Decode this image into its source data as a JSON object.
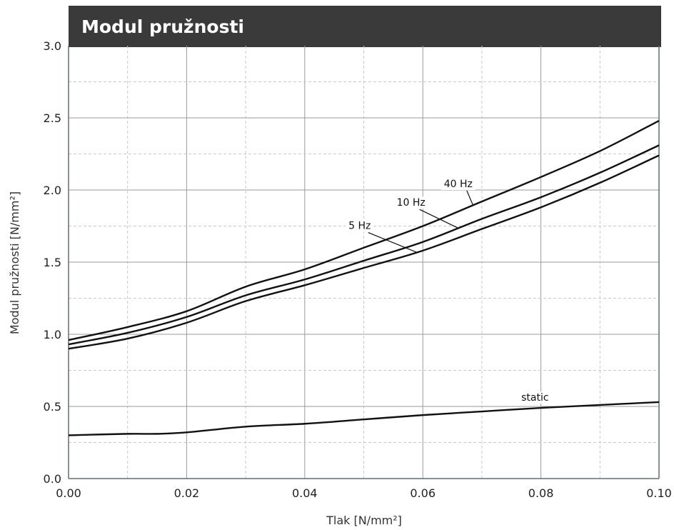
{
  "chart_data": {
    "type": "line",
    "title": "Modul pružnosti",
    "xlabel": "Tlak [N/mm²]",
    "ylabel": "Modul pružnosti [N/mm²]",
    "xlim": [
      0,
      0.1
    ],
    "ylim": [
      0,
      3.0
    ],
    "x_ticks": [
      "0.00",
      "0.02",
      "0.04",
      "0.06",
      "0.08",
      "0.10"
    ],
    "y_ticks": [
      "0.0",
      "0.5",
      "1.0",
      "1.5",
      "2.0",
      "2.5",
      "3.0"
    ],
    "grid": true,
    "series": [
      {
        "name": "40 Hz",
        "x": [
          0,
          0.01,
          0.02,
          0.03,
          0.04,
          0.05,
          0.06,
          0.07,
          0.08,
          0.09,
          0.1
        ],
        "y": [
          0.96,
          1.05,
          1.16,
          1.33,
          1.45,
          1.6,
          1.75,
          1.92,
          2.09,
          2.27,
          2.48
        ]
      },
      {
        "name": "10 Hz",
        "x": [
          0,
          0.01,
          0.02,
          0.03,
          0.04,
          0.05,
          0.06,
          0.07,
          0.08,
          0.09,
          0.1
        ],
        "y": [
          0.93,
          1.01,
          1.12,
          1.27,
          1.38,
          1.51,
          1.64,
          1.8,
          1.95,
          2.12,
          2.31
        ]
      },
      {
        "name": "5 Hz",
        "x": [
          0,
          0.01,
          0.02,
          0.03,
          0.04,
          0.05,
          0.06,
          0.07,
          0.08,
          0.09,
          0.1
        ],
        "y": [
          0.9,
          0.97,
          1.08,
          1.23,
          1.34,
          1.46,
          1.58,
          1.73,
          1.88,
          2.05,
          2.24
        ]
      },
      {
        "name": "static",
        "x": [
          0,
          0.01,
          0.015,
          0.02,
          0.03,
          0.04,
          0.05,
          0.06,
          0.07,
          0.08,
          0.09,
          0.1
        ],
        "y": [
          0.3,
          0.31,
          0.31,
          0.32,
          0.36,
          0.38,
          0.41,
          0.44,
          0.465,
          0.49,
          0.51,
          0.53
        ]
      }
    ]
  }
}
